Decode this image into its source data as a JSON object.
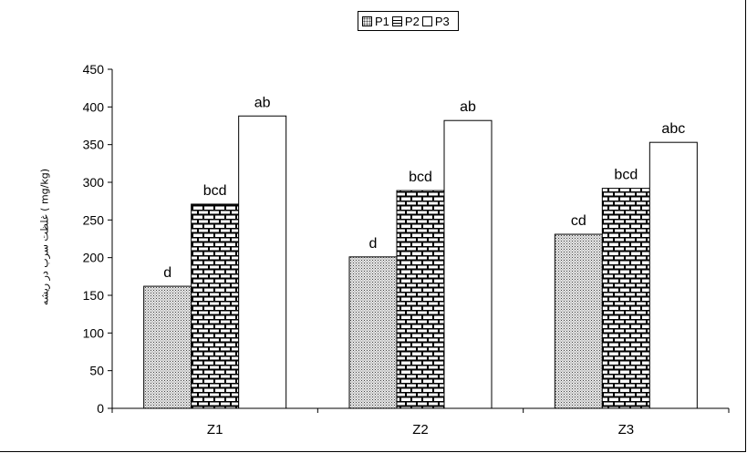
{
  "chart_data": {
    "type": "bar",
    "categories": [
      "Z1",
      "Z2",
      "Z3"
    ],
    "series": [
      {
        "name": "P1",
        "values": [
          162,
          201,
          231
        ],
        "labels": [
          "d",
          "d",
          "cd"
        ]
      },
      {
        "name": "P2",
        "values": [
          271,
          289,
          292
        ],
        "labels": [
          "bcd",
          "bcd",
          "bcd"
        ]
      },
      {
        "name": "P3",
        "values": [
          388,
          382,
          353
        ],
        "labels": [
          "ab",
          "ab",
          "abc"
        ]
      }
    ],
    "ylabel": "غلظت سرب در ریشه ( mg/kg)",
    "xlabel": "",
    "ylim": [
      0,
      450
    ],
    "yticks": [
      0,
      50,
      100,
      150,
      200,
      250,
      300,
      350,
      400,
      450
    ],
    "legend": {
      "position": "top",
      "entries": [
        "P1",
        "P2",
        "P3"
      ]
    },
    "grid": false
  }
}
